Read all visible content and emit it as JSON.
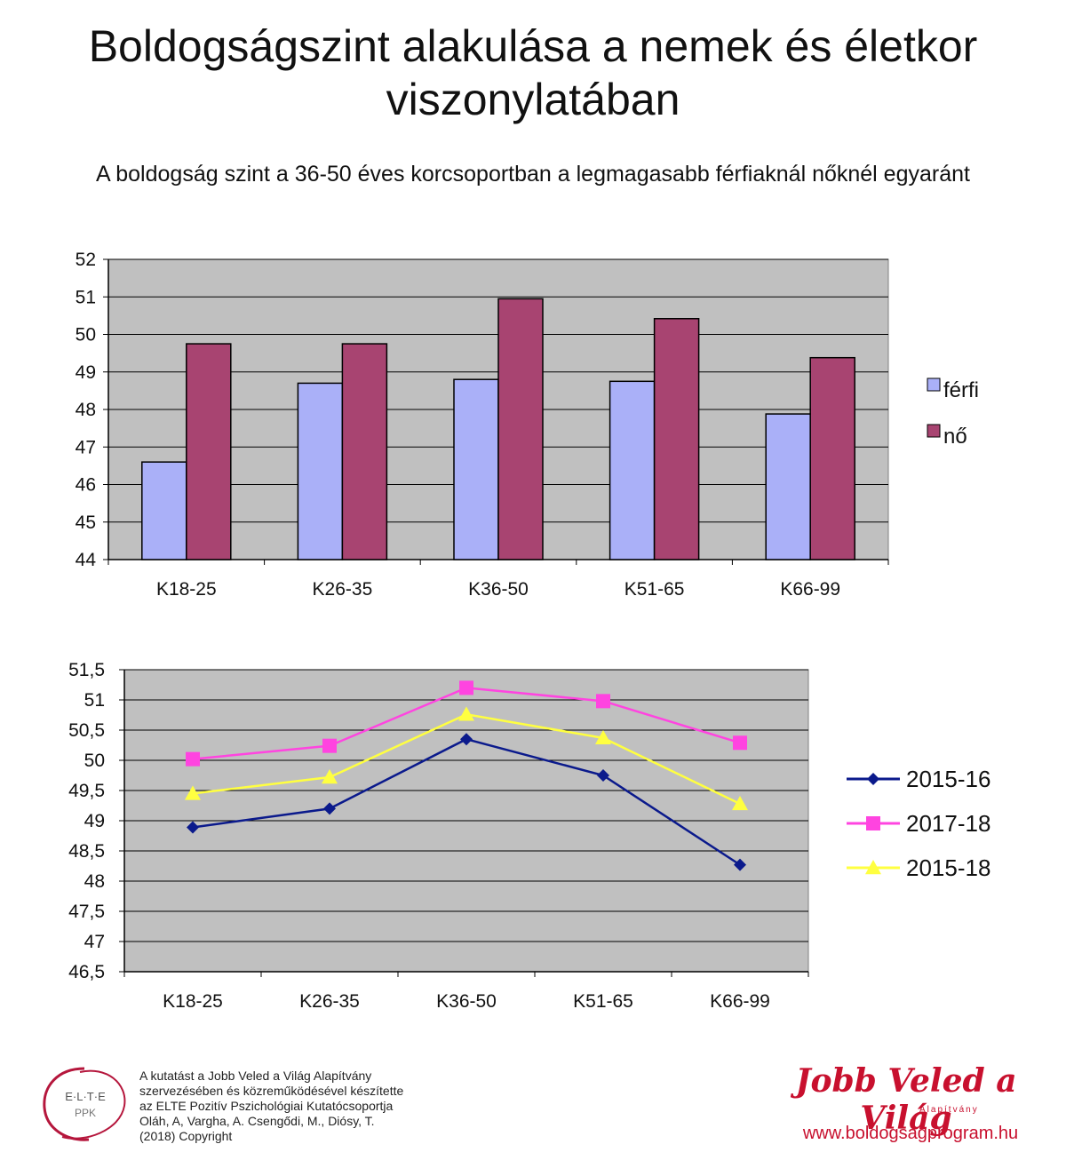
{
  "title_line1": "Boldogságszint alakulása a nemek és életkor",
  "title_line2": "viszonylatában",
  "subtitle": "A boldogság szint a 36-50 éves korcsoportban a legmagasabb férfiaknál nőknél egyaránt",
  "chart_data": [
    {
      "type": "bar",
      "categories": [
        "K18-25",
        "K26-35",
        "K36-50",
        "K51-65",
        "K66-99"
      ],
      "series": [
        {
          "name": "férfi",
          "color": "#aab0f8",
          "values": [
            46.6,
            48.7,
            48.8,
            48.75,
            47.88
          ]
        },
        {
          "name": "nő",
          "color": "#a84471",
          "values": [
            49.75,
            49.75,
            50.95,
            50.42,
            49.38
          ]
        }
      ],
      "ylim": [
        44,
        52
      ],
      "yticks": [
        "44",
        "45",
        "46",
        "47",
        "48",
        "49",
        "50",
        "51",
        "52"
      ],
      "grid": true,
      "legend": "right"
    },
    {
      "type": "line",
      "categories": [
        "K18-25",
        "K26-35",
        "K36-50",
        "K51-65",
        "K66-99"
      ],
      "series": [
        {
          "name": "2015-16",
          "color": "#0b1a8c",
          "marker": "diamond",
          "values": [
            48.89,
            49.2,
            50.35,
            49.75,
            48.27
          ]
        },
        {
          "name": "2017-18",
          "color": "#ff44e0",
          "marker": "square",
          "values": [
            50.02,
            50.24,
            51.2,
            50.98,
            50.29
          ]
        },
        {
          "name": "2015-18",
          "color": "#ffff40",
          "marker": "triangle",
          "values": [
            49.45,
            49.72,
            50.76,
            50.37,
            49.28
          ]
        }
      ],
      "ylim": [
        46.5,
        51.5
      ],
      "yticks": [
        "46,5",
        "47",
        "47,5",
        "48",
        "48,5",
        "49",
        "49,5",
        "50",
        "50,5",
        "51",
        "51,5"
      ],
      "grid": true,
      "legend": "right"
    }
  ],
  "footer": {
    "lines": [
      "A kutatást a Jobb Veled a Világ Alapítvány",
      "szervezésében és közreműködésével készítette",
      "az ELTE Pozitív Pszichológiai Kutatócsoportja",
      "Oláh, A, Vargha, A. Csengődi, M., Diósy, T.",
      "(2018) Copyright"
    ],
    "logo_text": "E·L·T·E",
    "logo_sub": "PPK",
    "brand": "Jobb Veled a Világ",
    "brand_sub": "Alapítvány",
    "url": "www.boldogsagprogram.hu"
  }
}
